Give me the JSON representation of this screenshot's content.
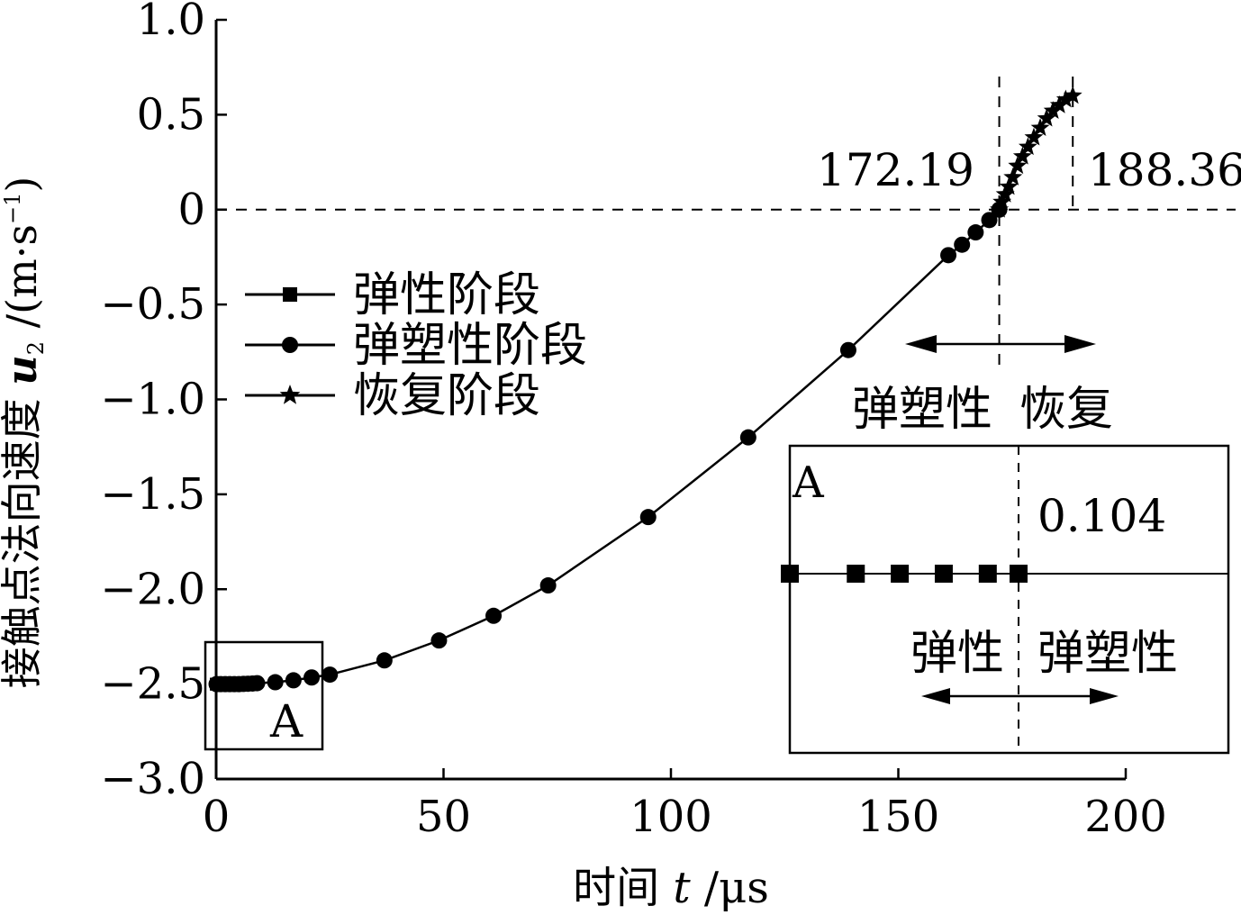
{
  "chart_data": {
    "type": "line",
    "xlabel_text": "时间 ",
    "xlabel_var": "t",
    "xlabel_unit": " /μs",
    "ylabel_text": "接触点法向速度 ",
    "ylabel_var": "u",
    "ylabel_sub": "2",
    "ylabel_unit": " /(m·s",
    "ylabel_sup": "−1",
    "ylabel_close": ")",
    "xlim": [
      0,
      200
    ],
    "ylim": [
      -3.0,
      1.0
    ],
    "xticks": [
      0,
      50,
      100,
      150,
      200
    ],
    "xtick_labels": [
      "0",
      "50",
      "100",
      "150",
      "200"
    ],
    "yticks": [
      1.0,
      0.5,
      0,
      -0.5,
      -1.0,
      -1.5,
      -2.0,
      -2.5,
      -3.0
    ],
    "ytick_labels": [
      "1.0",
      "0.5",
      "0",
      "−0.5",
      "−1.0",
      "−1.5",
      "−2.0",
      "−2.5",
      "−3.0"
    ],
    "series": [
      {
        "name": "弹性阶段",
        "marker": "square",
        "x": [
          0,
          0.03,
          0.05,
          0.07,
          0.09
        ],
        "y": [
          -2.5,
          -2.5,
          -2.5,
          -2.5,
          -2.5
        ]
      },
      {
        "name": "弹塑性阶段",
        "marker": "circle",
        "x": [
          0.104,
          1,
          2,
          3,
          4,
          5,
          6,
          7,
          8,
          9,
          13,
          17,
          21,
          25,
          37,
          49,
          61,
          73,
          95,
          117,
          139,
          161,
          164,
          167,
          170,
          172.19
        ],
        "y": [
          -2.5,
          -2.5,
          -2.5,
          -2.5,
          -2.5,
          -2.5,
          -2.499,
          -2.498,
          -2.497,
          -2.495,
          -2.49,
          -2.48,
          -2.465,
          -2.45,
          -2.375,
          -2.27,
          -2.14,
          -1.98,
          -1.62,
          -1.2,
          -0.74,
          -0.24,
          -0.185,
          -0.12,
          -0.055,
          0
        ]
      },
      {
        "name": "恢复阶段",
        "marker": "star",
        "x": [
          172.19,
          172.8,
          173.5,
          174.3,
          175.2,
          176.2,
          177.3,
          178.5,
          179.8,
          181.2,
          182.6,
          184.0,
          185.4,
          186.8,
          188.36
        ],
        "y": [
          0,
          0.04,
          0.08,
          0.12,
          0.17,
          0.23,
          0.28,
          0.33,
          0.38,
          0.43,
          0.48,
          0.52,
          0.55,
          0.58,
          0.6
        ]
      }
    ],
    "reference_lines": {
      "y0": 0,
      "x1": 172.19,
      "x2": 188.36
    },
    "annotations": {
      "x1_label": "172.19",
      "x2_label": "188.36",
      "phase_left": "弹塑性",
      "phase_right": "恢复",
      "region_label": "A"
    },
    "inset": {
      "label": "A",
      "value_label": "0.104",
      "phase_left": "弹性",
      "phase_right": "弹塑性",
      "squares_x": [
        0,
        0.03,
        0.05,
        0.07,
        0.09,
        0.104
      ],
      "boundary_x": 0.104
    },
    "legend_position": "upper-left",
    "grid": false
  }
}
